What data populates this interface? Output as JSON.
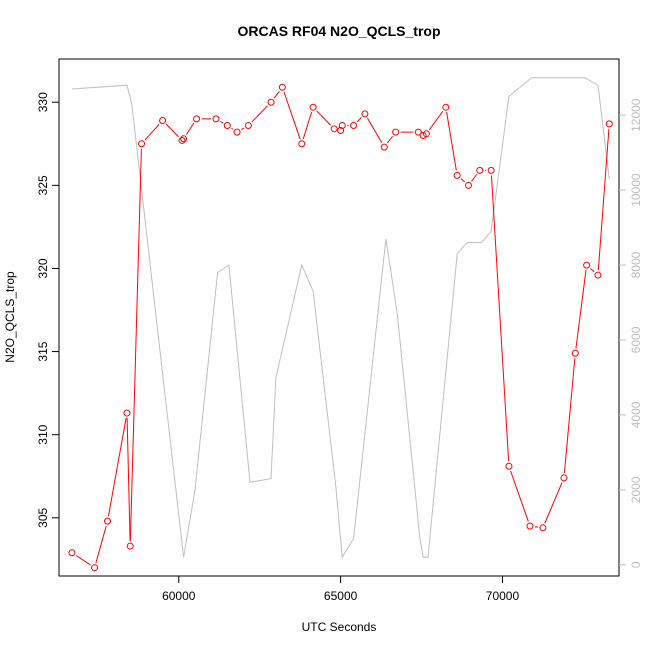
{
  "chart_data": {
    "type": "line",
    "title": "ORCAS RF04 N2O_QCLS_trop",
    "xlabel": "UTC Seconds",
    "ylabel": "N2O_QCLS_trop",
    "xlim": [
      56300,
      73600
    ],
    "ylim": [
      301.5,
      332.6
    ],
    "y2lim": [
      -300,
      13500
    ],
    "xticks": [
      60000,
      65000,
      70000
    ],
    "yticks": [
      305,
      310,
      315,
      320,
      325,
      330
    ],
    "y2ticks": [
      0,
      2000,
      4000,
      6000,
      8000,
      10000,
      12000
    ],
    "grid": false,
    "legend": "none",
    "colors": {
      "primary": "#ff0000",
      "secondary": "#bebebe"
    },
    "series": [
      {
        "axis": "left",
        "marker": "circle",
        "color": "#ff0000",
        "x": [
          56700,
          57400,
          57800,
          58400,
          58500,
          58850,
          59500,
          60100,
          60150,
          60550,
          61150,
          61500,
          61800,
          62150,
          62850,
          63200,
          63800,
          64150,
          64800,
          65000,
          65050,
          65400,
          65750,
          66350,
          66700,
          67400,
          67550,
          67650,
          68250,
          68600,
          68950,
          69300,
          69650,
          70200,
          70850,
          71250,
          71900,
          72250,
          72600,
          72950,
          73300
        ],
        "y": [
          302.9,
          302.0,
          304.8,
          311.3,
          303.3,
          327.5,
          328.9,
          327.7,
          327.8,
          329.0,
          329.0,
          328.6,
          328.2,
          328.6,
          330.0,
          330.9,
          327.5,
          329.7,
          328.4,
          328.3,
          328.6,
          328.6,
          329.3,
          327.3,
          328.2,
          328.2,
          328.0,
          328.1,
          329.7,
          325.6,
          325.0,
          325.9,
          325.9,
          308.1,
          304.5,
          304.4,
          307.4,
          314.9,
          320.2,
          319.6,
          328.7
        ]
      },
      {
        "axis": "right",
        "marker": "none",
        "color": "#bebebe",
        "x": [
          56700,
          58400,
          58550,
          60150,
          60500,
          61200,
          61550,
          62200,
          62850,
          63000,
          63800,
          64150,
          64850,
          65050,
          65400,
          66400,
          66750,
          67450,
          67550,
          67700,
          68600,
          68900,
          69350,
          69650,
          70200,
          70900,
          72550,
          72950,
          73300
        ],
        "y": [
          12700,
          12800,
          12300,
          200,
          2000,
          7800,
          8000,
          2200,
          2300,
          5000,
          8000,
          7300,
          2100,
          200,
          700,
          8700,
          6700,
          700,
          200,
          200,
          8300,
          8600,
          8600,
          8900,
          12500,
          13000,
          13000,
          12800,
          10300
        ]
      }
    ]
  }
}
